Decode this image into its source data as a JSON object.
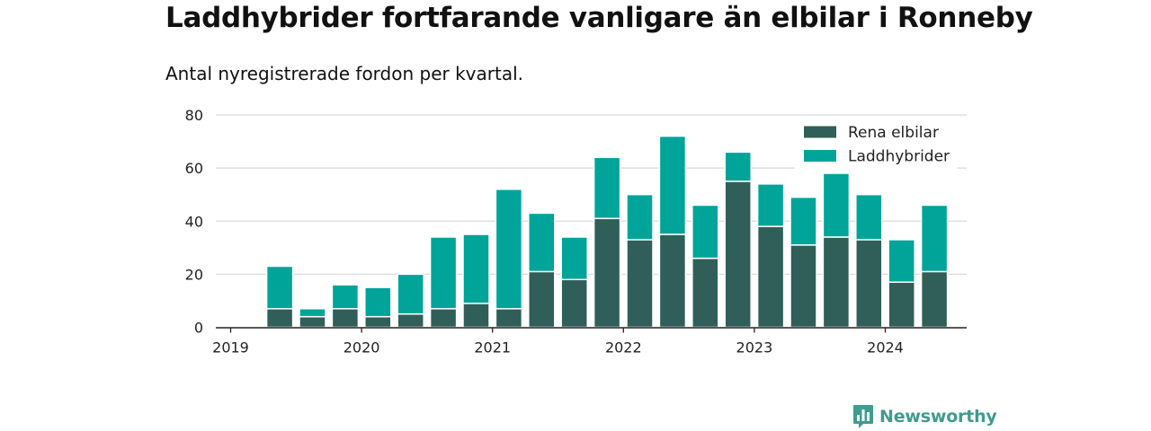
{
  "title": "Laddhybrider fortfarande vanligare än elbilar i Ronneby",
  "subtitle": "Antal nyregistrerade fordon per kvartal.",
  "brand": {
    "name": "Newsworthy",
    "icon": "newsworthy-logo-icon",
    "color": "#3f9c8e"
  },
  "chart_data": {
    "type": "bar",
    "stacked": true,
    "categories": [
      "2019 Q2",
      "2019 Q3",
      "2019 Q4",
      "2020 Q1",
      "2020 Q2",
      "2020 Q3",
      "2020 Q4",
      "2021 Q1",
      "2021 Q2",
      "2021 Q3",
      "2021 Q4",
      "2022 Q1",
      "2022 Q2",
      "2022 Q3",
      "2022 Q4",
      "2023 Q1",
      "2023 Q2",
      "2023 Q3",
      "2023 Q4",
      "2024 Q1",
      "2024 Q2"
    ],
    "series": [
      {
        "name": "Rena elbilar",
        "color": "#2f5f58",
        "values": [
          7,
          4,
          7,
          4,
          5,
          7,
          9,
          7,
          21,
          18,
          41,
          33,
          35,
          26,
          55,
          38,
          31,
          34,
          33,
          17,
          21
        ]
      },
      {
        "name": "Laddhybrider",
        "color": "#00a499",
        "values": [
          16,
          3,
          9,
          11,
          15,
          27,
          26,
          45,
          22,
          16,
          23,
          17,
          37,
          20,
          11,
          16,
          18,
          24,
          17,
          16,
          25
        ]
      }
    ],
    "x_ticks": [
      "2019",
      "2020",
      "2021",
      "2022",
      "2023",
      "2024"
    ],
    "y_ticks": [
      0,
      20,
      40,
      60,
      80
    ],
    "ylim": [
      0,
      80
    ],
    "xlabel": "",
    "ylabel": "",
    "grid": true,
    "legend_position": "top-right"
  }
}
